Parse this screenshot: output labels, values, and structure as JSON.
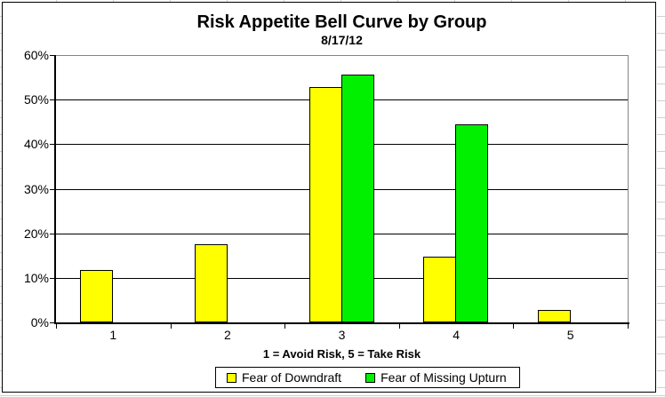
{
  "chart_data": {
    "type": "bar",
    "title": "Risk Appetite Bell Curve by Group",
    "subtitle": "8/17/12",
    "xlabel": "1 = Avoid Risk, 5 = Take Risk",
    "ylabel": "",
    "categories": [
      "1",
      "2",
      "3",
      "4",
      "5"
    ],
    "series": [
      {
        "name": "Fear of Downdraft",
        "color": "#ffff00",
        "values": [
          11.8,
          17.6,
          52.9,
          14.7,
          2.9
        ]
      },
      {
        "name": "Fear of Missing Upturn",
        "color": "#00f000",
        "values": [
          0,
          0,
          55.6,
          44.4,
          0
        ]
      }
    ],
    "ylim": [
      0,
      60
    ],
    "ytick_step": 10,
    "ytick_labels": [
      "0%",
      "10%",
      "20%",
      "30%",
      "40%",
      "50%",
      "60%"
    ],
    "grid": true,
    "legend_position": "bottom",
    "colors": {
      "axis": "#000000",
      "gridline": "#000000",
      "plot_border": "#858585",
      "background": "#ffffff",
      "bar_outline": "#000000"
    }
  }
}
